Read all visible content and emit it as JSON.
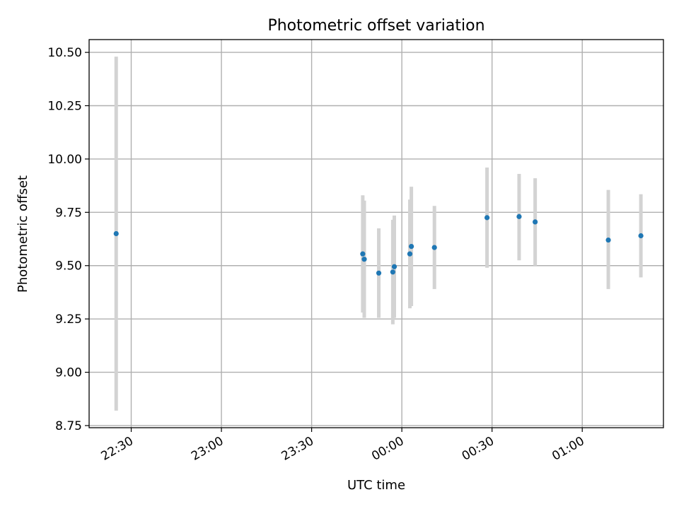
{
  "chart_data": {
    "type": "scatter",
    "title": "Photometric offset variation",
    "xlabel": "UTC time",
    "ylabel": "Photometric offset",
    "xlim": [
      "22:16:00",
      "01:27:00"
    ],
    "ylim": [
      8.74,
      10.56
    ],
    "x_ticks": [
      "22:30",
      "23:00",
      "23:30",
      "00:00",
      "00:30",
      "01:00"
    ],
    "y_ticks": [
      "8.75",
      "9.00",
      "9.25",
      "9.50",
      "9.75",
      "10.00",
      "10.25",
      "10.50"
    ],
    "grid": true,
    "points": [
      {
        "x": "22:25:00",
        "y": 9.65,
        "ylow": 8.82,
        "yhigh": 10.48
      },
      {
        "x": "23:47:00",
        "y": 9.555,
        "ylow": 9.28,
        "yhigh": 9.83
      },
      {
        "x": "23:47:30",
        "y": 9.53,
        "ylow": 9.255,
        "yhigh": 9.805
      },
      {
        "x": "23:52:20",
        "y": 9.465,
        "ylow": 9.255,
        "yhigh": 9.675
      },
      {
        "x": "23:57:00",
        "y": 9.47,
        "ylow": 9.225,
        "yhigh": 9.715
      },
      {
        "x": "23:57:30",
        "y": 9.495,
        "ylow": 9.255,
        "yhigh": 9.735
      },
      {
        "x": "00:02:40",
        "y": 9.555,
        "ylow": 9.3,
        "yhigh": 9.81
      },
      {
        "x": "00:03:10",
        "y": 9.59,
        "ylow": 9.31,
        "yhigh": 9.87
      },
      {
        "x": "00:10:50",
        "y": 9.585,
        "ylow": 9.39,
        "yhigh": 9.78
      },
      {
        "x": "00:28:20",
        "y": 9.725,
        "ylow": 9.49,
        "yhigh": 9.96
      },
      {
        "x": "00:39:00",
        "y": 9.73,
        "ylow": 9.525,
        "yhigh": 9.93
      },
      {
        "x": "00:44:20",
        "y": 9.705,
        "ylow": 9.5,
        "yhigh": 9.91
      },
      {
        "x": "01:08:40",
        "y": 9.62,
        "ylow": 9.39,
        "yhigh": 9.855
      },
      {
        "x": "01:19:30",
        "y": 9.64,
        "ylow": 9.445,
        "yhigh": 9.835
      }
    ],
    "colors": {
      "point": "#1f77b4",
      "errorbar": "#d3d3d3",
      "grid": "#b0b0b0"
    }
  }
}
